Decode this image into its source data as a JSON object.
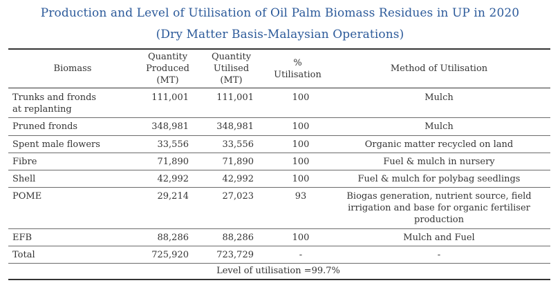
{
  "title": "Production and Level of Utilisation of Oil Palm Biomass Residues in UP in 2020",
  "subtitle": "(Dry Matter Basis-Malaysian Operations)",
  "headers": {
    "biomass": "Biomass",
    "qty_produced_1": "Quantity",
    "qty_produced_2": "Produced",
    "qty_produced_3": "(MT)",
    "qty_utilised_1": "Quantity",
    "qty_utilised_2": "Utilised",
    "qty_utilised_3": "(MT)",
    "pct_1": "%",
    "pct_2": "Utilisation",
    "method": "Method of Utilisation"
  },
  "rows": [
    {
      "biomass_1": "Trunks and fronds",
      "biomass_2": "at replanting",
      "produced": "111,001",
      "utilised": "111,001",
      "pct": "100",
      "method": "Mulch"
    },
    {
      "biomass_1": "Pruned fronds",
      "produced": "348,981",
      "utilised": "348,981",
      "pct": "100",
      "method": "Mulch"
    },
    {
      "biomass_1": "Spent male flowers",
      "produced": "33,556",
      "utilised": "33,556",
      "pct": "100",
      "method": "Organic matter recycled on land"
    },
    {
      "biomass_1": "Fibre",
      "produced": "71,890",
      "utilised": "71,890",
      "pct": "100",
      "method": "Fuel & mulch in nursery"
    },
    {
      "biomass_1": "Shell",
      "produced": "42,992",
      "utilised": "42,992",
      "pct": "100",
      "method": "Fuel & mulch for polybag seedlings"
    },
    {
      "biomass_1": "POME",
      "produced": "29,214",
      "utilised": "27,023",
      "pct": "93",
      "method_1": "Biogas generation, nutrient source, field",
      "method_2": "irrigation and base for organic fertiliser",
      "method_3": "production"
    },
    {
      "biomass_1": "EFB",
      "produced": "88,286",
      "utilised": "88,286",
      "pct": "100",
      "method": "Mulch and Fuel"
    },
    {
      "biomass_1": "Total",
      "produced": "725,920",
      "utilised": "723,729",
      "pct": "-",
      "method": "-"
    }
  ],
  "footnote": "Level of utilisation =99.7%"
}
